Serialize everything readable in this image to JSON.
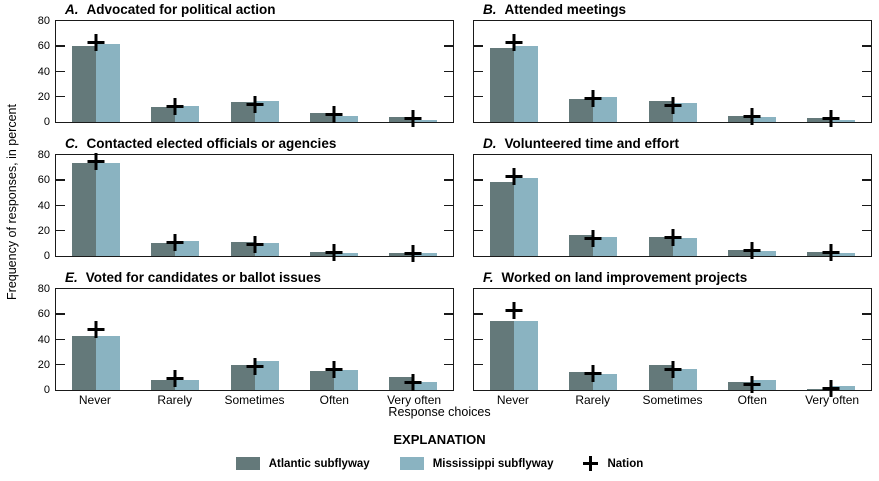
{
  "figure": {
    "explanation_title": "EXPLANATION",
    "legend": {
      "atlantic_label": "Atlantic subflyway",
      "mississippi_label": "Mississippi subflyway",
      "nation_label": "Nation"
    },
    "colors": {
      "atlantic": "#64797a",
      "mississippi": "#8ab3c1",
      "nation_marker": "#000000",
      "axis": "#1a1a1a"
    }
  },
  "chart_data": {
    "type": "bar",
    "categories": [
      "Never",
      "Rarely",
      "Sometimes",
      "Often",
      "Very often"
    ],
    "xlabel": "Response choices",
    "ylabel": "Frequency of responses, in percent",
    "ylim": [
      0,
      80
    ],
    "yticks": [
      0,
      20,
      40,
      60,
      80
    ],
    "grid": false,
    "legend_position": "bottom",
    "series_names": [
      "Atlantic subflyway",
      "Mississippi subflyway",
      "Nation"
    ],
    "nation_marker": "plus",
    "panels": [
      {
        "letter": "A.",
        "title": "Advocated for political action",
        "series": [
          {
            "name": "Atlantic subflyway",
            "values": [
              60,
              12,
              16,
              7,
              4
            ]
          },
          {
            "name": "Mississippi subflyway",
            "values": [
              62,
              13,
              17,
              4.5,
              1.5
            ]
          },
          {
            "name": "Nation",
            "marker": "plus",
            "values": [
              63,
              12.5,
              14,
              6,
              3
            ]
          }
        ]
      },
      {
        "letter": "B.",
        "title": "Attended meetings",
        "series": [
          {
            "name": "Atlantic subflyway",
            "values": [
              59,
              18,
              17,
              5,
              3
            ]
          },
          {
            "name": "Mississippi subflyway",
            "values": [
              60.5,
              20,
              15,
              4,
              1.5
            ]
          },
          {
            "name": "Nation",
            "marker": "plus",
            "values": [
              63,
              18.5,
              13,
              4,
              2.5
            ]
          }
        ]
      },
      {
        "letter": "C.",
        "title": "Contacted elected officials or agencies",
        "series": [
          {
            "name": "Atlantic subflyway",
            "values": [
              74,
              10,
              11,
              3,
              2
            ]
          },
          {
            "name": "Mississippi subflyway",
            "values": [
              74,
              12,
              10,
              2.5,
              2
            ]
          },
          {
            "name": "Nation",
            "marker": "plus",
            "values": [
              75,
              11,
              9.5,
              2.5,
              2
            ]
          }
        ]
      },
      {
        "letter": "D.",
        "title": "Volunteered time and effort",
        "series": [
          {
            "name": "Atlantic subflyway",
            "values": [
              59,
              17,
              15,
              5,
              3
            ]
          },
          {
            "name": "Mississippi subflyway",
            "values": [
              62,
              15,
              14,
              4,
              2.5
            ]
          },
          {
            "name": "Nation",
            "marker": "plus",
            "values": [
              63,
              14,
              14.5,
              4.5,
              2.5
            ]
          }
        ]
      },
      {
        "letter": "E.",
        "title": "Voted for candidates or ballot issues",
        "series": [
          {
            "name": "Atlantic subflyway",
            "values": [
              42.5,
              8,
              20,
              15,
              10
            ]
          },
          {
            "name": "Mississippi subflyway",
            "values": [
              42.5,
              8,
              23,
              16,
              6
            ]
          },
          {
            "name": "Nation",
            "marker": "plus",
            "values": [
              48,
              9,
              18.5,
              16,
              6
            ]
          }
        ]
      },
      {
        "letter": "F.",
        "title": "Worked on land improvement projects",
        "series": [
          {
            "name": "Atlantic subflyway",
            "values": [
              55,
              14,
              19.5,
              6,
              1
            ]
          },
          {
            "name": "Mississippi subflyway",
            "values": [
              55,
              13,
              17,
              8,
              3
            ]
          },
          {
            "name": "Nation",
            "marker": "plus",
            "values": [
              63,
              13,
              16,
              4,
              1.5
            ]
          }
        ]
      }
    ]
  }
}
